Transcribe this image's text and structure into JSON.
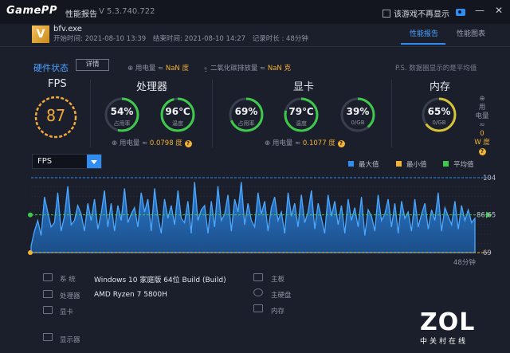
{
  "titlebar": {
    "logo": "GamePP",
    "title": "性能报告",
    "version": "V 5.3.740.722",
    "checkbox_label": "该游戏不再显示",
    "minimize": "—",
    "close": "✕"
  },
  "app": {
    "icon_letter": "V",
    "exe": "bfv.exe",
    "start_time": "开始时间: 2021-08-10 13:39",
    "end_time": "结束时间: 2021-08-10 14:27",
    "duration": "记录时长 : 48分钟"
  },
  "tabs": [
    {
      "label": "性能报告",
      "active": true
    },
    {
      "label": "性能图表",
      "active": false
    }
  ],
  "hardware": {
    "title": "硬件状态",
    "detail_button": "详情",
    "power_label": "用电量 ≈",
    "power_value": "NaN 度",
    "co2_label": "二氧化碳排放量 ≈",
    "co2_value": "NaN 克",
    "ps_note": "P.S. 数据圈显示的是平均值"
  },
  "fps": {
    "title": "FPS",
    "value": "87"
  },
  "cpu": {
    "title": "处理器",
    "usage": {
      "value": "54%",
      "label": "占用率",
      "fraction": 0.54
    },
    "temp": {
      "value": "96℃",
      "label": "温度",
      "fraction": 0.96
    },
    "power_label": "用电量 ≈",
    "power_value": "0.0798 度"
  },
  "gpu": {
    "title": "显卡",
    "usage": {
      "value": "69%",
      "label": "占用率",
      "fraction": 0.69
    },
    "temp": {
      "value": "79℃",
      "label": "温度",
      "fraction": 0.79
    },
    "vram": {
      "value": "39%",
      "label": "0/GB",
      "fraction": 0.39
    },
    "power_label": "用电量 ≈",
    "power_value": "0.1077 度"
  },
  "memory": {
    "title": "内存",
    "usage": {
      "value": "65%",
      "label": "0/GB",
      "fraction": 0.65
    },
    "power_l1": "用",
    "power_l2": "电量",
    "power_l3": "≈",
    "power_v1": "0",
    "power_v2": "W 度"
  },
  "colors": {
    "accent": "#2f8df2",
    "max": "#2f8df2",
    "min": "#f2b233",
    "avg": "#3ec94a",
    "cpu_usage": "#3ec94a",
    "cpu_temp": "#3ec94a",
    "gpu_vram": "#3ec94a",
    "mem_usage": "#d4c33a",
    "fps_ring": "#f2a93b"
  },
  "chart_select": "FPS",
  "legend": {
    "max": "最大值",
    "min": "最小值",
    "avg": "平均值"
  },
  "chart_data": {
    "type": "area",
    "x_label": "48分钟",
    "max": 104,
    "avg": 86.65,
    "min": 69,
    "ylim": [
      69,
      104
    ],
    "max_label": "104",
    "avg_label": "86.65",
    "min_label": "69",
    "values": [
      72,
      79,
      84,
      77,
      95,
      88,
      81,
      83,
      97,
      79,
      86,
      100,
      82,
      84,
      91,
      87,
      79,
      92,
      84,
      94,
      80,
      87,
      98,
      81,
      92,
      79,
      91,
      84,
      99,
      83,
      87,
      90,
      81,
      97,
      88,
      94,
      79,
      99,
      86,
      78,
      94,
      85,
      91,
      82,
      98,
      85,
      83,
      93,
      78,
      102,
      84,
      89,
      91,
      78,
      93,
      81,
      100,
      84,
      87,
      96,
      79,
      94,
      88,
      102,
      82,
      92,
      84,
      81,
      97,
      87,
      93,
      79,
      90,
      95,
      84,
      88,
      78,
      97,
      86,
      92,
      81,
      96,
      83,
      88,
      98,
      80,
      92,
      85,
      78,
      96,
      86,
      93,
      82,
      91,
      78,
      94,
      84,
      90,
      81,
      95,
      77,
      89,
      86,
      79,
      96,
      84,
      87,
      94,
      81,
      92,
      78,
      93,
      85,
      88,
      79,
      94,
      81,
      87,
      92,
      80,
      89,
      84,
      97,
      79,
      90,
      86,
      82,
      93,
      80,
      91,
      84,
      89,
      83,
      85
    ]
  },
  "sysinfo": {
    "os_label": "系    统",
    "os_value": "Windows 10 家庭版 64位   Build (Build)",
    "cpu_label": "处理器",
    "cpu_value": "AMD Ryzen 7 5800H",
    "gpu_label": "显卡",
    "display_label": "显示器",
    "board_label": "主板",
    "disk_label": "主硬盘",
    "mem_label": "内存"
  },
  "watermark": {
    "brand": "ZOL",
    "sub": "中关村在线"
  }
}
